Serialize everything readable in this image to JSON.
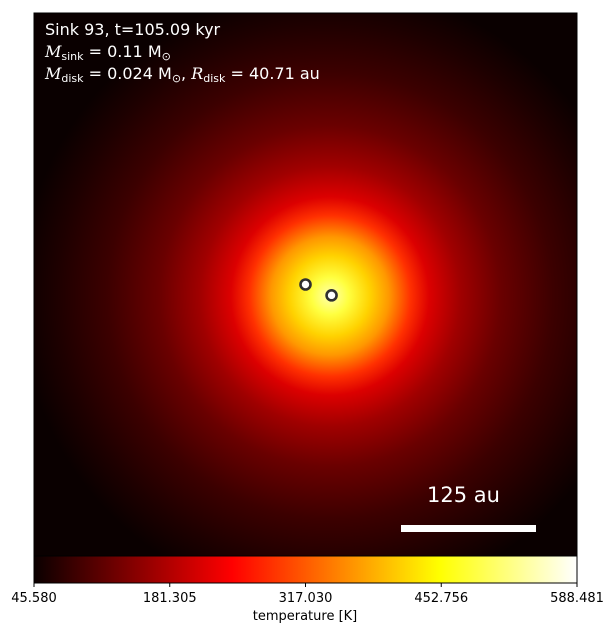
{
  "chart_data": {
    "type": "heatmap",
    "title_lines": {
      "line1": "Sink 93, t=105.09 kyr",
      "sink_mass_label": "M",
      "sink_mass_sub": "sink",
      "sink_mass_value": " = 0.11 M",
      "sink_mass_unit_sub": "⊙",
      "disk_mass_label": "M",
      "disk_mass_sub": "disk",
      "disk_mass_value": " = 0.024 M",
      "disk_mass_unit_sub": "⊙",
      "disk_radius_sep": ", ",
      "disk_radius_label": "R",
      "disk_radius_sub": "disk",
      "disk_radius_value": " = 40.71 au"
    },
    "scale_bar": {
      "label": "125 au",
      "length_au": 125
    },
    "colorbar": {
      "label": "temperature [K]",
      "range": [
        45.58,
        588.481
      ],
      "ticks": [
        45.58,
        181.305,
        317.03,
        452.756,
        588.481
      ],
      "tick_labels": [
        "45.580",
        "181.305",
        "317.030",
        "452.756",
        "588.481"
      ],
      "colormap": "hot"
    },
    "field": {
      "peak_temperature": 588.481,
      "background_temperature": 45.58,
      "peak_center_fraction": [
        0.55,
        0.52
      ],
      "profile": "radially decreasing from central sink"
    },
    "sinks": [
      {
        "name": "sink-a",
        "position_fraction": [
          0.5,
          0.5
        ]
      },
      {
        "name": "sink-b",
        "position_fraction": [
          0.548,
          0.52
        ]
      }
    ],
    "colors": {
      "marker_fill": "#ffffff",
      "marker_edge": "#303030",
      "scale_bar": "#ffffff",
      "annotation_text": "#ffffff"
    }
  }
}
